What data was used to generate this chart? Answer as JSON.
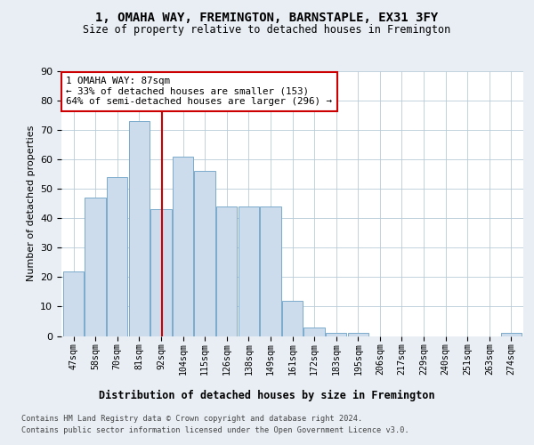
{
  "title_line1": "1, OMAHA WAY, FREMINGTON, BARNSTAPLE, EX31 3FY",
  "title_line2": "Size of property relative to detached houses in Fremington",
  "xlabel": "Distribution of detached houses by size in Fremington",
  "ylabel": "Number of detached properties",
  "bar_labels": [
    "47sqm",
    "58sqm",
    "70sqm",
    "81sqm",
    "92sqm",
    "104sqm",
    "115sqm",
    "126sqm",
    "138sqm",
    "149sqm",
    "161sqm",
    "172sqm",
    "183sqm",
    "195sqm",
    "206sqm",
    "217sqm",
    "229sqm",
    "240sqm",
    "251sqm",
    "263sqm",
    "274sqm"
  ],
  "bar_values": [
    22,
    47,
    54,
    73,
    43,
    61,
    56,
    44,
    44,
    44,
    12,
    3,
    1,
    1,
    0,
    0,
    0,
    0,
    0,
    0,
    1
  ],
  "bar_color": "#ccdcec",
  "bar_edge_color": "#7aaacc",
  "vline_color": "#cc0000",
  "annotation_text": "1 OMAHA WAY: 87sqm\n← 33% of detached houses are smaller (153)\n64% of semi-detached houses are larger (296) →",
  "annotation_box_color": "#ffffff",
  "annotation_box_edge_color": "#cc0000",
  "ylim": [
    0,
    90
  ],
  "yticks": [
    0,
    10,
    20,
    30,
    40,
    50,
    60,
    70,
    80,
    90
  ],
  "footer_line1": "Contains HM Land Registry data © Crown copyright and database right 2024.",
  "footer_line2": "Contains public sector information licensed under the Open Government Licence v3.0.",
  "bg_color": "#e8eef4",
  "plot_bg_color": "#ffffff"
}
